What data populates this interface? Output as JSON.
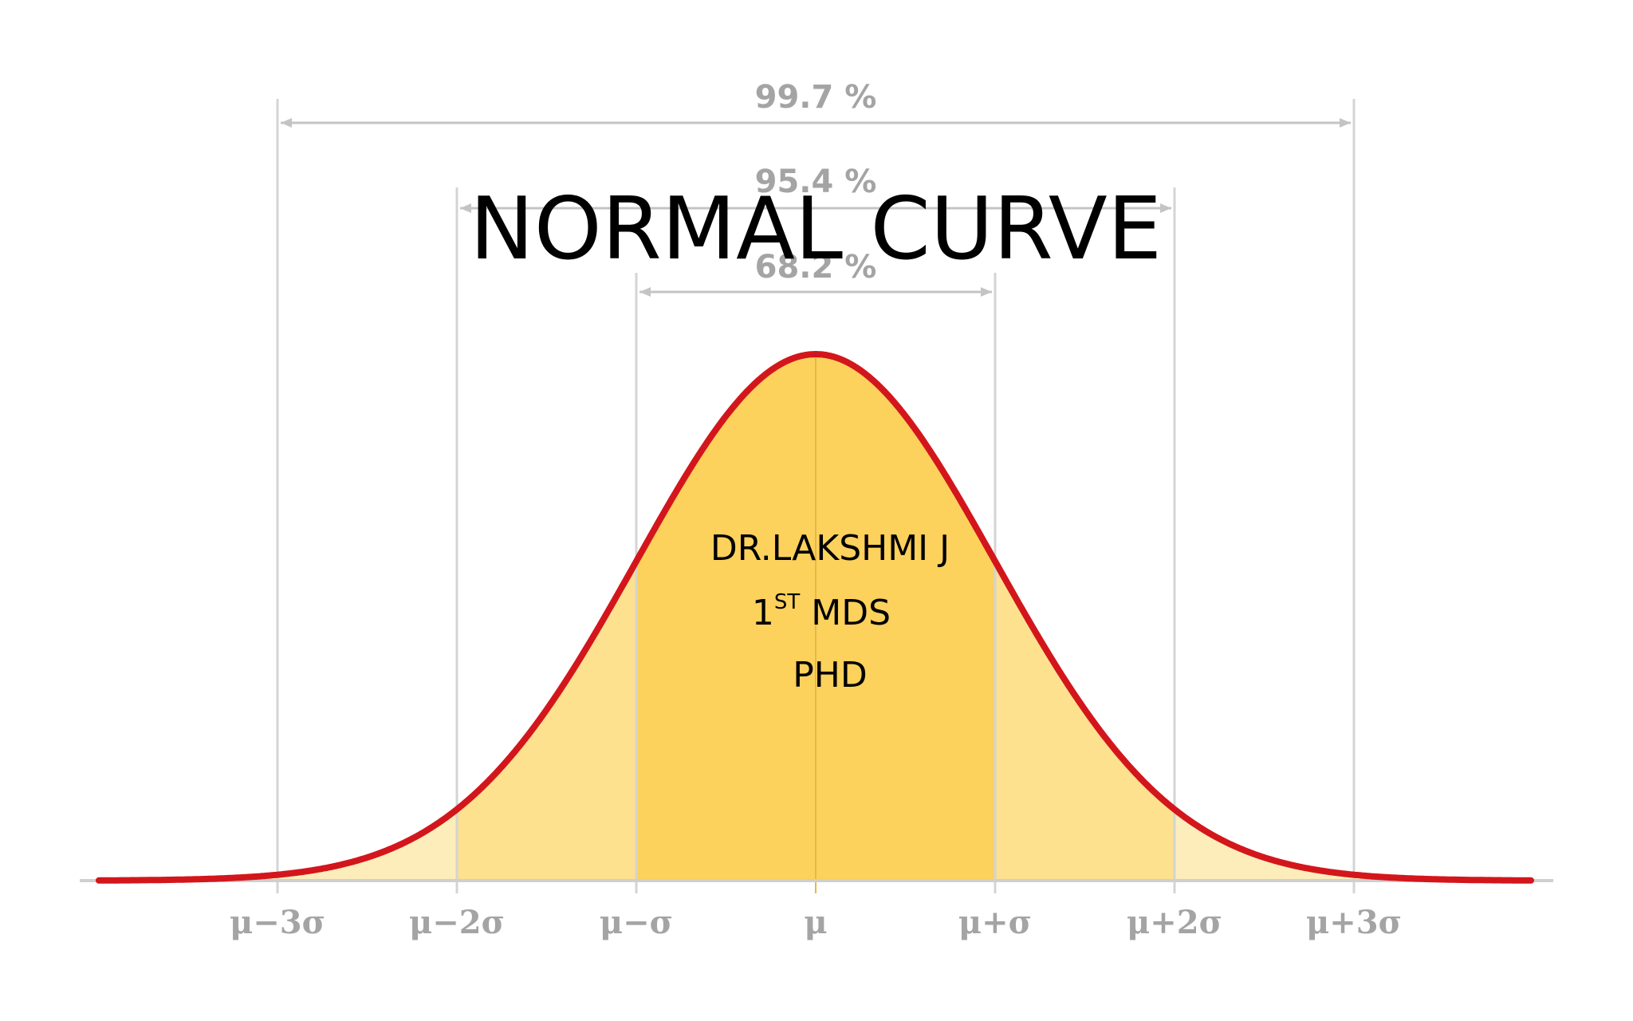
{
  "title": "NORMAL CURVE",
  "author": {
    "name": "DR.LAKSHMI J",
    "degree_number": "1",
    "degree_suffix": "ST",
    "degree": "MDS",
    "course": "PHD"
  },
  "diagram": {
    "ranges": [
      "99.7 %",
      "95.4 %",
      "68.2 %"
    ],
    "axis_labels": [
      "μ−3σ",
      "μ−2σ",
      "μ−σ",
      "μ",
      "μ+σ",
      "μ+2σ",
      "μ+3σ"
    ]
  }
}
